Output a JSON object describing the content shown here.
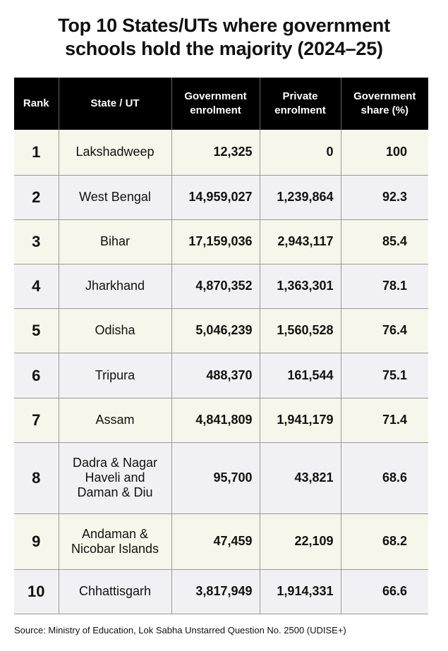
{
  "title_lines": [
    "Top 10 States/UTs where government",
    "schools hold the majority (2024–25)"
  ],
  "chart_data": {
    "type": "table",
    "title": "Top 10 States/UTs where government schools hold the majority (2024–25)",
    "columns": [
      "Rank",
      "State / UT",
      "Government enrolment",
      "Private enrolment",
      "Government share (%)"
    ],
    "header_lines": [
      [
        "Rank"
      ],
      [
        "State / UT"
      ],
      [
        "Government",
        "enrolment"
      ],
      [
        "Private",
        "enrolment"
      ],
      [
        "Government",
        "share (%)"
      ]
    ],
    "rows": [
      {
        "rank": "1",
        "state": "Lakshadweep",
        "gov": "12,325",
        "priv": "0",
        "share": "100"
      },
      {
        "rank": "2",
        "state": "West Bengal",
        "gov": "14,959,027",
        "priv": "1,239,864",
        "share": "92.3"
      },
      {
        "rank": "3",
        "state": "Bihar",
        "gov": "17,159,036",
        "priv": "2,943,117",
        "share": "85.4"
      },
      {
        "rank": "4",
        "state": "Jharkhand",
        "gov": "4,870,352",
        "priv": "1,363,301",
        "share": "78.1"
      },
      {
        "rank": "5",
        "state": "Odisha",
        "gov": "5,046,239",
        "priv": "1,560,528",
        "share": "76.4"
      },
      {
        "rank": "6",
        "state": "Tripura",
        "gov": "488,370",
        "priv": "161,544",
        "share": "75.1"
      },
      {
        "rank": "7",
        "state": "Assam",
        "gov": "4,841,809",
        "priv": "1,941,179",
        "share": "71.4"
      },
      {
        "rank": "8",
        "state": "Dadra & Nagar Haveli and Daman & Diu",
        "gov": "95,700",
        "priv": "43,821",
        "share": "68.6"
      },
      {
        "rank": "9",
        "state": "Andaman & Nicobar Islands",
        "gov": "47,459",
        "priv": "22,109",
        "share": "68.2"
      },
      {
        "rank": "10",
        "state": "Chhattisgarh",
        "gov": "3,817,949",
        "priv": "1,914,331",
        "share": "66.6"
      }
    ],
    "colors": {
      "header_bg": "#000000",
      "row_odd": "#f6f6ea",
      "row_even": "#f1f1f5"
    }
  },
  "source": "Source: Ministry of Education, Lok Sabha Unstarred Question No. 2500 (UDISE+)"
}
